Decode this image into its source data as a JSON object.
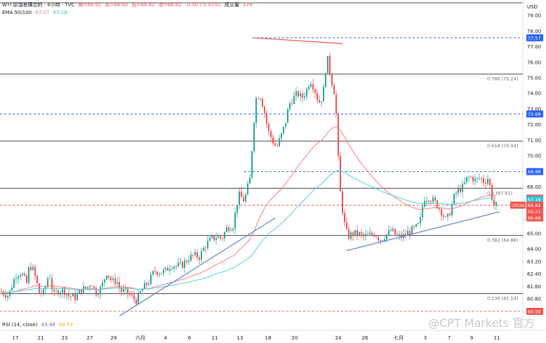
{
  "header": {
    "title": "WTI 原油差價合約 · 4小時 · TVC",
    "open": "開=66.92",
    "high": "高=66.92",
    "low": "低=66.82",
    "close": "收=66.82",
    "change": "-0.00 (-0.01%)",
    "volume": "成交量",
    "volume_value": "179",
    "ema_label": "EMA 50/100",
    "ema50": "67.27",
    "ema100": "67.18"
  },
  "currency": "USD",
  "rsi": {
    "label": "RSI (14, close)",
    "v1": "43.48",
    "v2": "54.53"
  },
  "watermark": "@CPT Markets 官方",
  "colors": {
    "up": "#26a69a",
    "down": "#ef5350",
    "ema50": "#f77c80",
    "ema100": "#4dd0e1",
    "trend": "#5b7fd6"
  },
  "chart_data": {
    "type": "candlestick",
    "ylim": [
      59.5,
      80.0
    ],
    "y_ticks": [
      "79.00",
      "78.00",
      "77.00",
      "76.00",
      "75.00",
      "74.00",
      "73.00",
      "72.00",
      "71.00",
      "70.00",
      "69.00",
      "68.00",
      "67.00",
      "66.00",
      "65.00",
      "64.00",
      "63.20",
      "62.40",
      "61.60",
      "60.80",
      "60.00"
    ],
    "x_labels": [
      "17",
      "21",
      "23",
      "27",
      "29",
      "六月",
      "4",
      "6",
      "11",
      "13",
      "18",
      "20",
      "24",
      "26",
      "七月",
      "3",
      "7",
      "9",
      "11"
    ],
    "fib_levels": [
      {
        "label": "0.786 (75.24)",
        "value": 75.24
      },
      {
        "label": "0.618 (70.94)",
        "value": 70.94
      },
      {
        "label": "0.5 (67.91)",
        "value": 67.91
      },
      {
        "label": "0.382 (64.88)",
        "value": 64.88
      },
      {
        "label": "0.236 (61.14)",
        "value": 61.14
      }
    ],
    "price_tags": [
      {
        "label": "77.57",
        "value": 77.57,
        "color": "#2962ff"
      },
      {
        "label": "72.68",
        "value": 72.68,
        "color": "#2962ff"
      },
      {
        "label": "68.98",
        "value": 68.98,
        "color": "#2962ff"
      },
      {
        "label": "67.27",
        "value": 67.27,
        "color": "#ef5350"
      },
      {
        "label": "67.18",
        "value": 67.18,
        "color": "#26c6da"
      },
      {
        "label": "USOIL",
        "value": 66.82,
        "color": "#ef5350"
      },
      {
        "label": "66.82",
        "value": 66.82,
        "color": "#ef5350"
      },
      {
        "label": "02:21:13",
        "value": 66.42,
        "color": "#ef5350"
      },
      {
        "label": "66.68",
        "value": 66.0,
        "color": "#ef5350"
      },
      {
        "label": "60.00",
        "value": 60.0,
        "color": "#ef5350"
      }
    ],
    "waypoints": [
      [
        0,
        61.3
      ],
      [
        12,
        61.0
      ],
      [
        22,
        62.3
      ],
      [
        30,
        62.5
      ],
      [
        38,
        61.8
      ],
      [
        42,
        63.0
      ],
      [
        48,
        62.6
      ],
      [
        56,
        61.2
      ],
      [
        63,
        61.2
      ],
      [
        70,
        62.5
      ],
      [
        76,
        61.0
      ],
      [
        82,
        61.3
      ],
      [
        90,
        61.4
      ],
      [
        98,
        61.0
      ],
      [
        108,
        60.9
      ],
      [
        116,
        61.4
      ],
      [
        124,
        61.5
      ],
      [
        130,
        61.9
      ],
      [
        136,
        61.2
      ],
      [
        144,
        61.5
      ],
      [
        152,
        62.5
      ],
      [
        160,
        61.9
      ],
      [
        166,
        62.0
      ],
      [
        172,
        61.3
      ],
      [
        178,
        61.3
      ],
      [
        186,
        61.0
      ],
      [
        194,
        60.7
      ],
      [
        200,
        61.2
      ],
      [
        206,
        61.6
      ],
      [
        212,
        61.9
      ],
      [
        220,
        62.6
      ],
      [
        228,
        62.5
      ],
      [
        236,
        62.6
      ],
      [
        244,
        63.0
      ],
      [
        252,
        62.9
      ],
      [
        260,
        63.0
      ],
      [
        268,
        63.4
      ],
      [
        276,
        63.6
      ],
      [
        284,
        63.5
      ],
      [
        292,
        64.2
      ],
      [
        300,
        64.6
      ],
      [
        308,
        64.8
      ],
      [
        316,
        64.7
      ],
      [
        324,
        65.4
      ],
      [
        332,
        65.5
      ],
      [
        340,
        67.5
      ],
      [
        348,
        67.1
      ],
      [
        356,
        68.5
      ],
      [
        364,
        73.6
      ],
      [
        370,
        74.0
      ],
      [
        376,
        73.0
      ],
      [
        382,
        71.6
      ],
      [
        388,
        71.0
      ],
      [
        394,
        70.5
      ],
      [
        400,
        71.2
      ],
      [
        406,
        72.0
      ],
      [
        412,
        73.3
      ],
      [
        418,
        73.7
      ],
      [
        424,
        74.0
      ],
      [
        430,
        73.7
      ],
      [
        436,
        74.1
      ],
      [
        442,
        74.9
      ],
      [
        448,
        74.3
      ],
      [
        454,
        73.4
      ],
      [
        460,
        73.8
      ],
      [
        466,
        76.4
      ],
      [
        470,
        75.4
      ],
      [
        474,
        74.5
      ],
      [
        478,
        73.8
      ],
      [
        480,
        71.5
      ],
      [
        484,
        68.0
      ],
      [
        488,
        66.5
      ],
      [
        492,
        65.3
      ],
      [
        496,
        64.8
      ],
      [
        502,
        65.0
      ],
      [
        510,
        65.0
      ],
      [
        518,
        64.8
      ],
      [
        526,
        64.9
      ],
      [
        534,
        65.0
      ],
      [
        542,
        64.6
      ],
      [
        550,
        64.9
      ],
      [
        558,
        65.2
      ],
      [
        566,
        64.8
      ],
      [
        574,
        64.8
      ],
      [
        582,
        65.1
      ],
      [
        590,
        65.3
      ],
      [
        598,
        65.6
      ],
      [
        604,
        67.3
      ],
      [
        612,
        67.3
      ],
      [
        620,
        67.0
      ],
      [
        628,
        66.5
      ],
      [
        636,
        65.8
      ],
      [
        642,
        66.5
      ],
      [
        648,
        67.5
      ],
      [
        654,
        67.8
      ],
      [
        660,
        68.0
      ],
      [
        666,
        68.6
      ],
      [
        672,
        68.6
      ],
      [
        678,
        68.4
      ],
      [
        684,
        68.6
      ],
      [
        690,
        68.3
      ],
      [
        696,
        68.6
      ],
      [
        700,
        67.5
      ],
      [
        704,
        66.8
      ],
      [
        708,
        66.82
      ]
    ]
  }
}
